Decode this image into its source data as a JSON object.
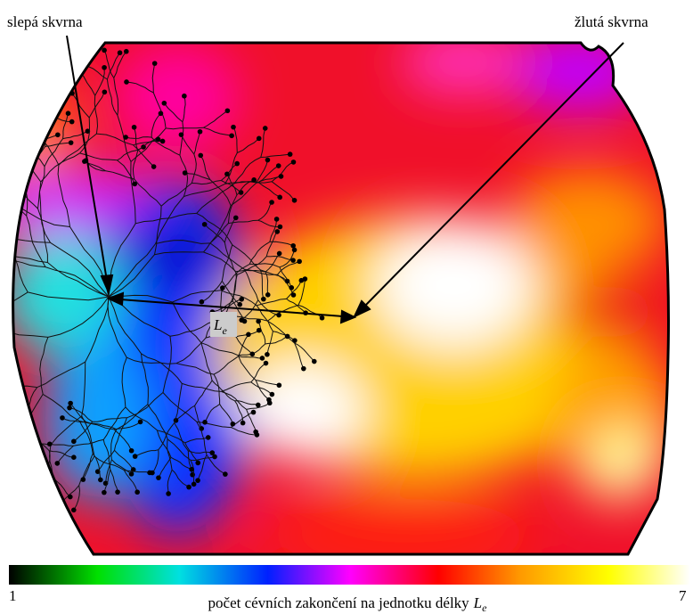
{
  "labels": {
    "blind_spot": "slepá skvrna",
    "yellow_spot": "žlutá skvrna",
    "distance_var": "L",
    "distance_sub": "e"
  },
  "colorbar": {
    "min": 1,
    "max": 7,
    "caption": "počet cévních zakončení na jednotku délky",
    "caption_var": "L",
    "caption_sub": "e"
  }
}
